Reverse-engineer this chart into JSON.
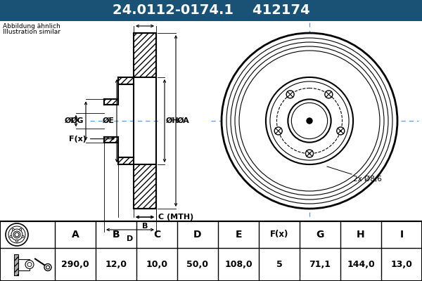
{
  "title_part": "24.0112-0174.1",
  "title_code": "412174",
  "title_bg": "#1a5276",
  "title_fg": "#ffffff",
  "bg_color": "#ccdff0",
  "note_line1": "Abbildung ähnlich",
  "note_line2": "Illustration similar",
  "annotation_2x": "2x Ø8,6",
  "table_headers": [
    "A",
    "B",
    "C",
    "D",
    "E",
    "F(x)",
    "G",
    "H",
    "I"
  ],
  "table_values": [
    "290,0",
    "12,0",
    "10,0",
    "50,0",
    "108,0",
    "5",
    "71,1",
    "144,0",
    "13,0"
  ],
  "line_color": "#000000",
  "crosshair_color": "#5b9bd5",
  "white": "#ffffff"
}
